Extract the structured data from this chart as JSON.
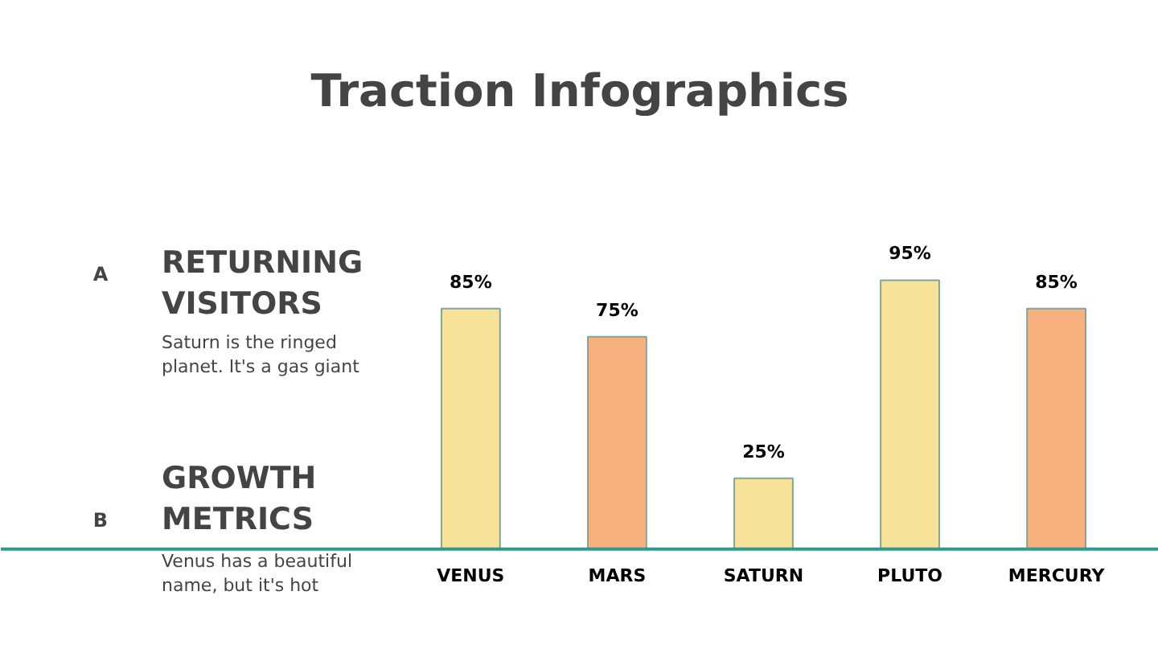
{
  "chart_data": {
    "type": "bar",
    "title": "Traction Infographics",
    "categories": [
      "VENUS",
      "MARS",
      "SATURN",
      "PLUTO",
      "MERCURY"
    ],
    "values": [
      85,
      75,
      25,
      95,
      85
    ],
    "colors": [
      "#f7e29a",
      "#f8b07f",
      "#f7e29a",
      "#f7e29a",
      "#f8b07f"
    ],
    "value_labels": [
      "85%",
      "75%",
      "25%",
      "95%",
      "85%"
    ],
    "annotations": [
      "A",
      "RETURNING VISITORS",
      "Saturn is the ringed planet. It's a gas giant",
      "B",
      "GROWTH METRICS",
      "Venus has a beautiful name, but it's hot"
    ]
  }
}
